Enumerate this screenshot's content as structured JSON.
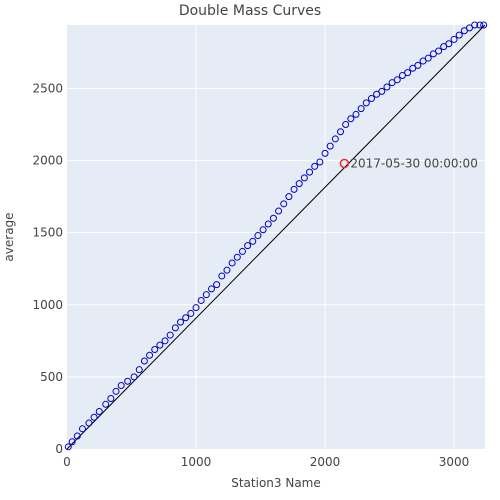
{
  "chart_data": {
    "type": "scatter",
    "title": "Double Mass Curves",
    "xlabel": "Station3 Name",
    "ylabel": "average",
    "xlim": [
      0,
      3240
    ],
    "ylim": [
      0,
      2940
    ],
    "x_ticks": [
      0,
      1000,
      2000,
      3000
    ],
    "y_ticks": [
      0,
      500,
      1000,
      1500,
      2000,
      2500
    ],
    "x_tick_labels": [
      "0",
      "1000",
      "2000",
      "3000"
    ],
    "y_tick_labels": [
      "0",
      "500",
      "1000",
      "1500",
      "2000",
      "2500"
    ],
    "grid": true,
    "background": "#e5ecf6",
    "marker_color": "#0000cc",
    "trend_color": "#000000",
    "highlight_color": "#e8282b",
    "trend_line": {
      "x": [
        0,
        3240
      ],
      "y": [
        0,
        2940
      ]
    },
    "series": [
      {
        "marker": "open-circle",
        "x": [
          10,
          40,
          80,
          120,
          170,
          210,
          250,
          300,
          340,
          380,
          420,
          470,
          520,
          560,
          600,
          640,
          680,
          720,
          760,
          800,
          840,
          880,
          920,
          960,
          1000,
          1040,
          1080,
          1120,
          1160,
          1200,
          1240,
          1280,
          1320,
          1360,
          1400,
          1440,
          1480,
          1520,
          1560,
          1600,
          1640,
          1680,
          1720,
          1760,
          1800,
          1840,
          1880,
          1920,
          1960,
          2000,
          2040,
          2080,
          2120,
          2160,
          2200,
          2240,
          2280,
          2320,
          2360,
          2400,
          2440,
          2480,
          2520,
          2560,
          2600,
          2640,
          2680,
          2720,
          2760,
          2800,
          2840,
          2880,
          2920,
          2960,
          3000,
          3040,
          3080,
          3120,
          3160,
          3200,
          3230
        ],
        "y": [
          15,
          50,
          90,
          140,
          180,
          220,
          260,
          310,
          350,
          400,
          440,
          470,
          500,
          550,
          610,
          650,
          690,
          720,
          750,
          790,
          840,
          880,
          910,
          940,
          980,
          1030,
          1070,
          1110,
          1140,
          1200,
          1240,
          1290,
          1330,
          1370,
          1410,
          1440,
          1480,
          1520,
          1560,
          1600,
          1650,
          1700,
          1750,
          1800,
          1840,
          1880,
          1920,
          1960,
          1990,
          2050,
          2100,
          2150,
          2200,
          2250,
          2290,
          2320,
          2360,
          2400,
          2430,
          2460,
          2480,
          2510,
          2540,
          2560,
          2590,
          2610,
          2640,
          2660,
          2690,
          2710,
          2740,
          2760,
          2790,
          2810,
          2840,
          2870,
          2900,
          2920,
          2940,
          2940,
          2940
        ]
      }
    ],
    "highlight": {
      "x": 2150,
      "y": 1980,
      "label": "2017-05-30 00:00:00"
    }
  }
}
